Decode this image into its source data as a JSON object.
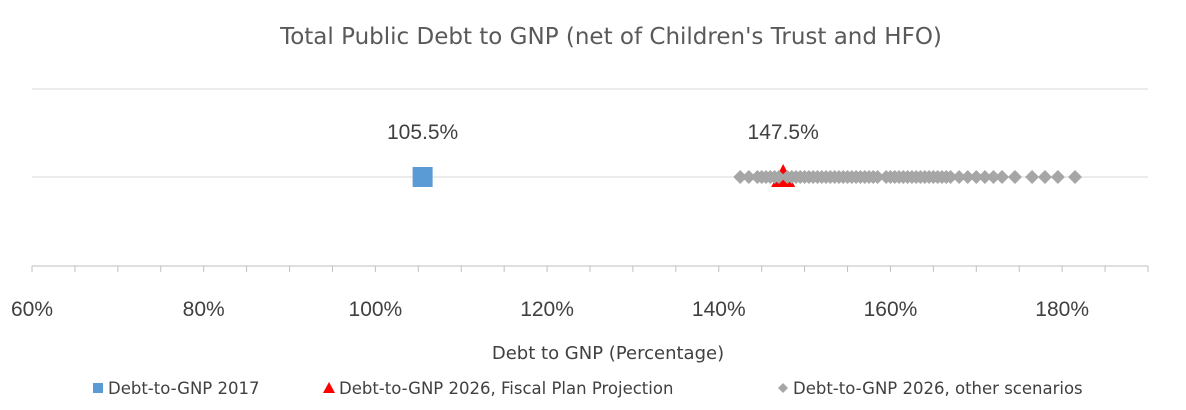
{
  "chart_data": {
    "type": "scatter",
    "title": "Total Public Debt to GNP (net of Children's Trust and HFO)",
    "xlabel": "Debt to GNP (Percentage)",
    "ylabel": "",
    "xlim": [
      60,
      190
    ],
    "x_ticks": [
      60,
      80,
      100,
      120,
      140,
      160,
      180
    ],
    "x_tick_labels": [
      "60%",
      "80%",
      "100%",
      "120%",
      "140%",
      "160%",
      "180%"
    ],
    "grid": "horizontal",
    "legend_position": "bottom",
    "series": [
      {
        "name": "Debt-to-GNP 2017",
        "marker": "square",
        "color": "#5b9bd5",
        "points": [
          105.5
        ],
        "data_label": "105.5%"
      },
      {
        "name": "Debt-to-GNP 2026, Fiscal Plan Projection",
        "marker": "triangle",
        "color": "#ff0000",
        "points": [
          147.5
        ],
        "data_label": "147.5%"
      },
      {
        "name": "Debt-to-GNP 2026, other scenarios",
        "marker": "diamond",
        "color": "#a6a6a6",
        "points": [
          142.5,
          143.5,
          144.5,
          145.0,
          145.5,
          146.0,
          146.5,
          147.0,
          148.0,
          148.5,
          149.0,
          149.5,
          150.0,
          150.5,
          151.0,
          151.5,
          152.0,
          152.5,
          153.0,
          153.5,
          154.0,
          154.5,
          155.0,
          155.5,
          156.0,
          156.5,
          157.0,
          157.5,
          158.0,
          158.5,
          159.5,
          160.0,
          160.5,
          161.0,
          161.5,
          162.0,
          162.5,
          163.0,
          163.5,
          164.0,
          164.5,
          165.0,
          165.5,
          166.0,
          166.5,
          167.0,
          168.0,
          169.0,
          170.0,
          171.0,
          172.0,
          173.0,
          174.5,
          176.5,
          178.0,
          179.5,
          181.5
        ]
      }
    ]
  }
}
